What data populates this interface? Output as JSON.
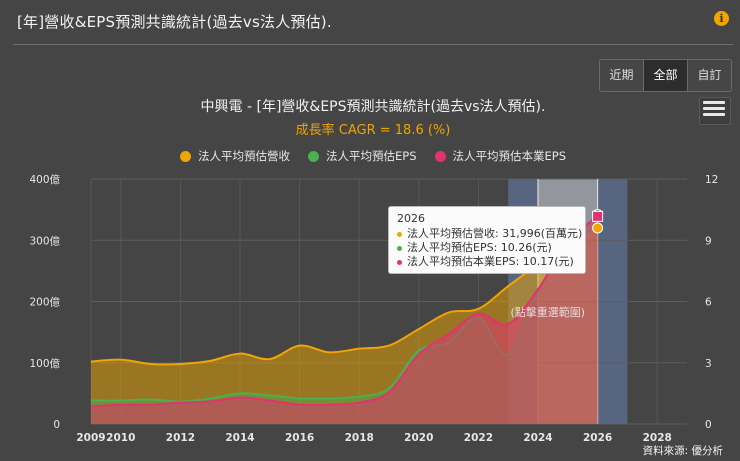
{
  "page": {
    "title": "[年]營收&EPS預測共識統計(過去vs法人預估).",
    "info_icon": "info-icon"
  },
  "buttons": [
    {
      "label": "近期",
      "active": false
    },
    {
      "label": "全部",
      "active": true
    },
    {
      "label": "自訂",
      "active": false
    }
  ],
  "source": "資料來源: 優分析",
  "tooltip": {
    "year": "2026",
    "rows": [
      "法人平均預估營收: 31,996(百萬元)",
      "法人平均預估EPS: 10.26(元)",
      "法人平均預估本業EPS: 10.17(元)"
    ]
  },
  "chart_data": {
    "type": "area",
    "title": "中興電 - [年]營收&EPS預測共識統計(過去vs法人預估).",
    "subtitle": "成長率 CAGR = 18.6 (%)",
    "legend_position": "top-center",
    "x_ticks": [
      "2009",
      "2010",
      "2012",
      "2014",
      "2016",
      "2018",
      "2020",
      "2022",
      "2024",
      "2026",
      "2028"
    ],
    "y_left_ticks": [
      "0",
      "100億",
      "200億",
      "300億",
      "400億"
    ],
    "y_right_ticks": [
      "0",
      "3",
      "6",
      "9",
      "12"
    ],
    "y_left_range": [
      0,
      400
    ],
    "y_right_range": [
      0,
      12
    ],
    "x_range": [
      2009,
      2029
    ],
    "highlight_bands": [
      {
        "from": 2023,
        "to": 2027,
        "color": "#5a6b8c",
        "label": ""
      },
      {
        "from": 2024,
        "to": 2026,
        "color": "#a7a7a7",
        "label": "(點擊重選範圍)"
      }
    ],
    "grid": true,
    "series": [
      {
        "name": "法人平均預估營收",
        "axis": "left",
        "unit": "億",
        "color": "#f0a500",
        "x": [
          2009,
          2010,
          2011,
          2012,
          2013,
          2014,
          2015,
          2016,
          2017,
          2018,
          2019,
          2020,
          2021,
          2022,
          2023,
          2024,
          2025,
          2026
        ],
        "values": [
          102,
          105,
          98,
          98,
          103,
          115,
          106,
          128,
          117,
          123,
          128,
          155,
          182,
          188,
          225,
          260,
          285,
          320
        ]
      },
      {
        "name": "法人平均預估EPS",
        "axis": "right",
        "unit": "元",
        "color": "#4caf50",
        "x": [
          2009,
          2010,
          2011,
          2012,
          2013,
          2014,
          2015,
          2016,
          2017,
          2018,
          2019,
          2020,
          2021,
          2022,
          2023,
          2024,
          2025,
          2026
        ],
        "values": [
          1.15,
          1.15,
          1.2,
          1.1,
          1.25,
          1.5,
          1.4,
          1.25,
          1.25,
          1.35,
          1.75,
          3.6,
          4.0,
          5.2,
          3.4,
          6.5,
          8.8,
          10.26
        ]
      },
      {
        "name": "法人平均預估本業EPS",
        "axis": "right",
        "unit": "元",
        "color": "#e0336f",
        "x": [
          2009,
          2010,
          2011,
          2012,
          2013,
          2014,
          2015,
          2016,
          2017,
          2018,
          2019,
          2020,
          2021,
          2022,
          2023,
          2024,
          2025,
          2026
        ],
        "values": [
          0.85,
          0.95,
          0.95,
          1.05,
          1.1,
          1.3,
          1.15,
          0.95,
          0.95,
          1.05,
          1.55,
          3.4,
          4.4,
          5.4,
          4.9,
          6.6,
          8.9,
          10.17
        ]
      }
    ]
  }
}
